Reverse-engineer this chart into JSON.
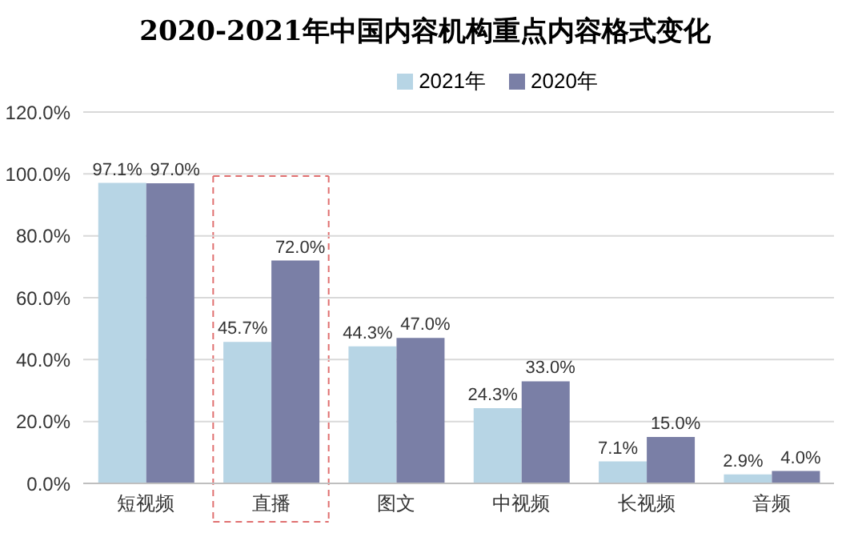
{
  "chart_data": {
    "type": "bar",
    "title": "2020-2021年中国内容机构重点内容格式变化",
    "categories": [
      "短视频",
      "直播",
      "图文",
      "中视频",
      "长视频",
      "音频"
    ],
    "series": [
      {
        "name": "2021年",
        "color": "#b7d5e5",
        "values": [
          97.1,
          45.7,
          44.3,
          24.3,
          7.1,
          2.9
        ],
        "value_labels": [
          "97.1%",
          "45.7%",
          "44.3%",
          "24.3%",
          "7.1%",
          "2.9%"
        ]
      },
      {
        "name": "2020年",
        "color": "#7a7fa6",
        "values": [
          97.0,
          72.0,
          47.0,
          33.0,
          15.0,
          4.0
        ],
        "value_labels": [
          "97.0%",
          "72.0%",
          "47.0%",
          "33.0%",
          "15.0%",
          "4.0%"
        ]
      }
    ],
    "ylim": [
      0,
      120
    ],
    "yticks": [
      {
        "value": 0,
        "label": "0.0%"
      },
      {
        "value": 20,
        "label": "20.0%"
      },
      {
        "value": 40,
        "label": "40.0%"
      },
      {
        "value": 60,
        "label": "60.0%"
      },
      {
        "value": 80,
        "label": "80.0%"
      },
      {
        "value": 100,
        "label": "100.0%"
      },
      {
        "value": 120,
        "label": "120.0%"
      }
    ],
    "grid": "y",
    "legend": "top"
  }
}
